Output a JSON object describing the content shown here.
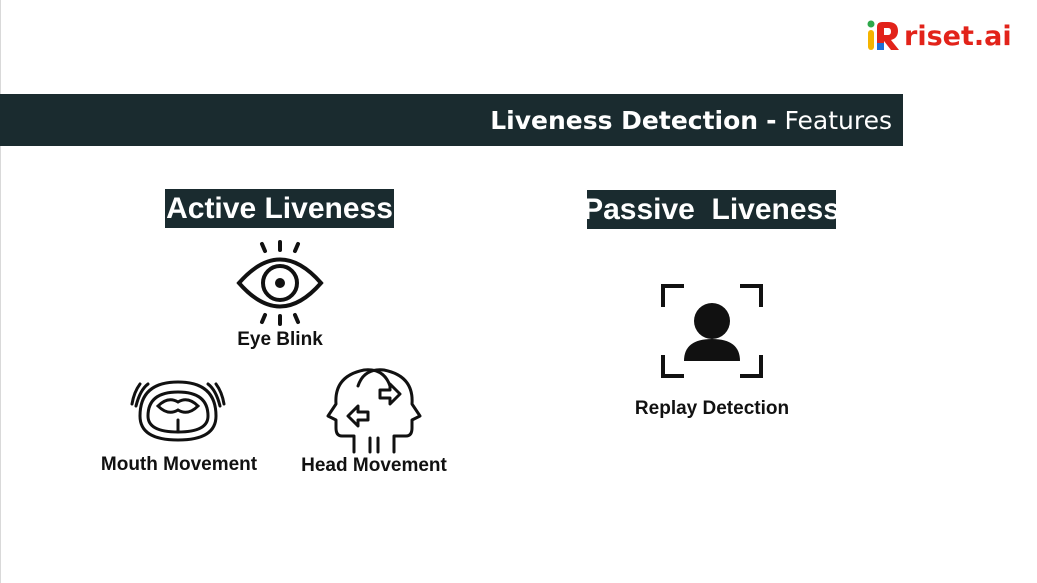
{
  "brand": {
    "logo_text": "riset.ai",
    "logo_mark": "iR-logo-icon",
    "colors": {
      "red": "#e2231a",
      "yellow": "#f5b400",
      "green": "#2ea84a",
      "blue": "#1d6fd8"
    }
  },
  "banner": {
    "title_bold": "Liveness Detection",
    "separator": "-",
    "title_light": "Features",
    "background": "#1a2b2f"
  },
  "active": {
    "heading": "Active Liveness",
    "features": [
      {
        "label": "Eye Blink",
        "icon": "eye-blink-icon"
      },
      {
        "label": "Mouth Movement",
        "icon": "mouth-open-icon"
      },
      {
        "label": "Head Movement",
        "icon": "head-turn-icon"
      }
    ]
  },
  "passive": {
    "heading": "Passive  Liveness",
    "features": [
      {
        "label": "Replay Detection",
        "icon": "face-scan-icon"
      }
    ]
  }
}
